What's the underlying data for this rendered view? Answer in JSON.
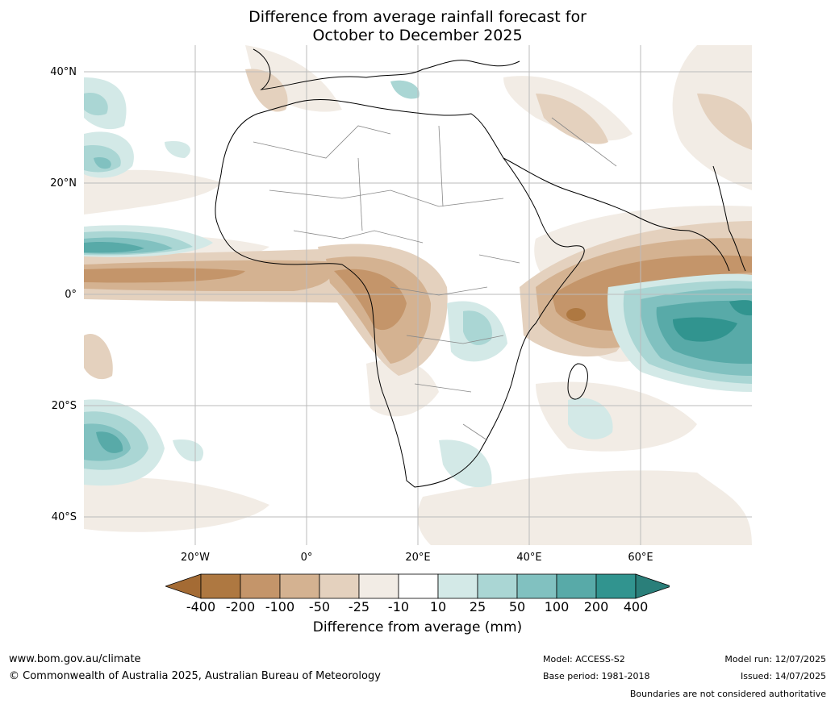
{
  "title_line1": "Difference from average rainfall forecast for",
  "title_line2": "October to December 2025",
  "lat_labels": [
    "40°N",
    "20°N",
    "0°",
    "20°S",
    "40°S"
  ],
  "lon_labels": [
    "20°W",
    "0°",
    "20°E",
    "40°E",
    "60°E"
  ],
  "colorbar": {
    "ticks": [
      "-400",
      "-200",
      "-100",
      "-50",
      "-25",
      "-10",
      "10",
      "25",
      "50",
      "100",
      "200",
      "400"
    ],
    "colors": [
      "#a46b34",
      "#ae7841",
      "#c4956a",
      "#d4b291",
      "#e4d1be",
      "#f2ece5",
      "#ffffff",
      "#d3e9e7",
      "#aad6d4",
      "#81c1c0",
      "#58aaa8",
      "#31948f",
      "#2a7f7a"
    ],
    "label": "Difference from average (mm)"
  },
  "footer": {
    "website": "www.bom.gov.au/climate",
    "copyright": "© Commonwealth of Australia 2025, Australian Bureau of Meteorology",
    "model": "Model: ACCESS-S2",
    "base_period": "Base period: 1981-2018",
    "model_run": "Model run: 12/07/2025",
    "issued": "Issued: 14/07/2025",
    "disclaimer": "Boundaries are not considered authoritative"
  }
}
